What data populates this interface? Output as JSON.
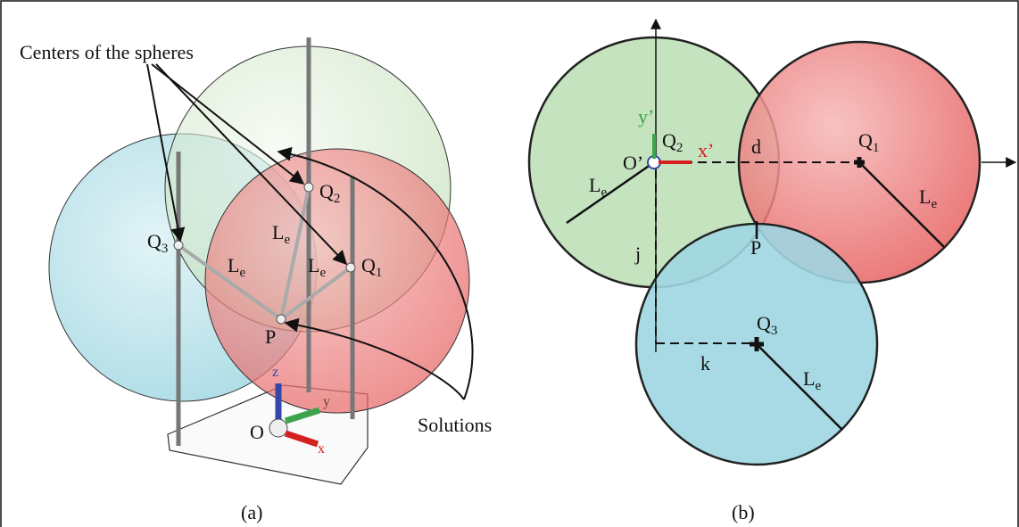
{
  "panel_a": {
    "callout_top": "Centers of the spheres",
    "callout_bottom": "Solutions",
    "caption": "(a)",
    "labels": [
      {
        "base": "Q",
        "sub": "2"
      },
      {
        "base": "Q",
        "sub": "3"
      },
      {
        "base": "Q",
        "sub": "1"
      },
      {
        "base": "L",
        "sub": "e"
      },
      {
        "base": "L",
        "sub": "e"
      },
      {
        "base": "L",
        "sub": "e"
      },
      {
        "base": "P",
        "sub": ""
      },
      {
        "base": "O",
        "sub": ""
      }
    ],
    "axes": [
      "z",
      "y",
      "x"
    ]
  },
  "panel_b": {
    "caption": "(b)",
    "labels": [
      {
        "base": "y’",
        "sub": ""
      },
      {
        "base": "Q",
        "sub": "2"
      },
      {
        "base": "x’",
        "sub": ""
      },
      {
        "base": "O’",
        "sub": ""
      },
      {
        "base": "d",
        "sub": ""
      },
      {
        "base": "Q",
        "sub": "1"
      },
      {
        "base": "L",
        "sub": "e"
      },
      {
        "base": "L",
        "sub": "e"
      },
      {
        "base": "P",
        "sub": ""
      },
      {
        "base": "j",
        "sub": ""
      },
      {
        "base": "Q",
        "sub": "3"
      },
      {
        "base": "k",
        "sub": ""
      },
      {
        "base": "L",
        "sub": "e"
      }
    ]
  }
}
